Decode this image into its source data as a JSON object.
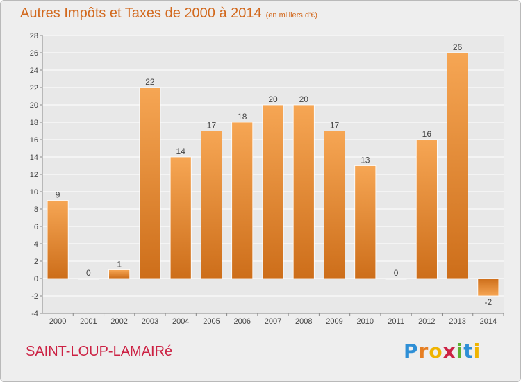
{
  "title": "Autres Impôts et Taxes de 2000 à 2014",
  "title_unit": "(en milliers d'€)",
  "commune": "SAINT-LOUP-LAMAIRé",
  "logo": {
    "text": "Proxiti",
    "letter_colors": [
      "#2e8fd6",
      "#e67e22",
      "#f0b400",
      "#cc2244",
      "#5fb030",
      "#2e8fd6",
      "#f0b400"
    ]
  },
  "colors": {
    "bar_light": "#f6a654",
    "bar_dark": "#cd6e1a",
    "title": "#d2691e",
    "commune": "#cc2244",
    "grid": "#ffffff",
    "plot_bg": "#e8e8e8"
  },
  "chart_data": {
    "type": "bar",
    "title": "Autres Impôts et Taxes de 2000 à 2014",
    "categories": [
      "2000",
      "2001",
      "2002",
      "2003",
      "2004",
      "2005",
      "2006",
      "2007",
      "2008",
      "2009",
      "2010",
      "2011",
      "2012",
      "2013",
      "2014"
    ],
    "values": [
      9,
      0,
      1,
      22,
      14,
      17,
      18,
      20,
      20,
      17,
      13,
      0,
      16,
      26,
      -2
    ],
    "ylim": [
      -4,
      28
    ],
    "yticks": [
      -4,
      -2,
      0,
      2,
      4,
      6,
      8,
      10,
      12,
      14,
      16,
      18,
      20,
      22,
      24,
      26,
      28
    ],
    "grid": true,
    "legend": "none"
  }
}
